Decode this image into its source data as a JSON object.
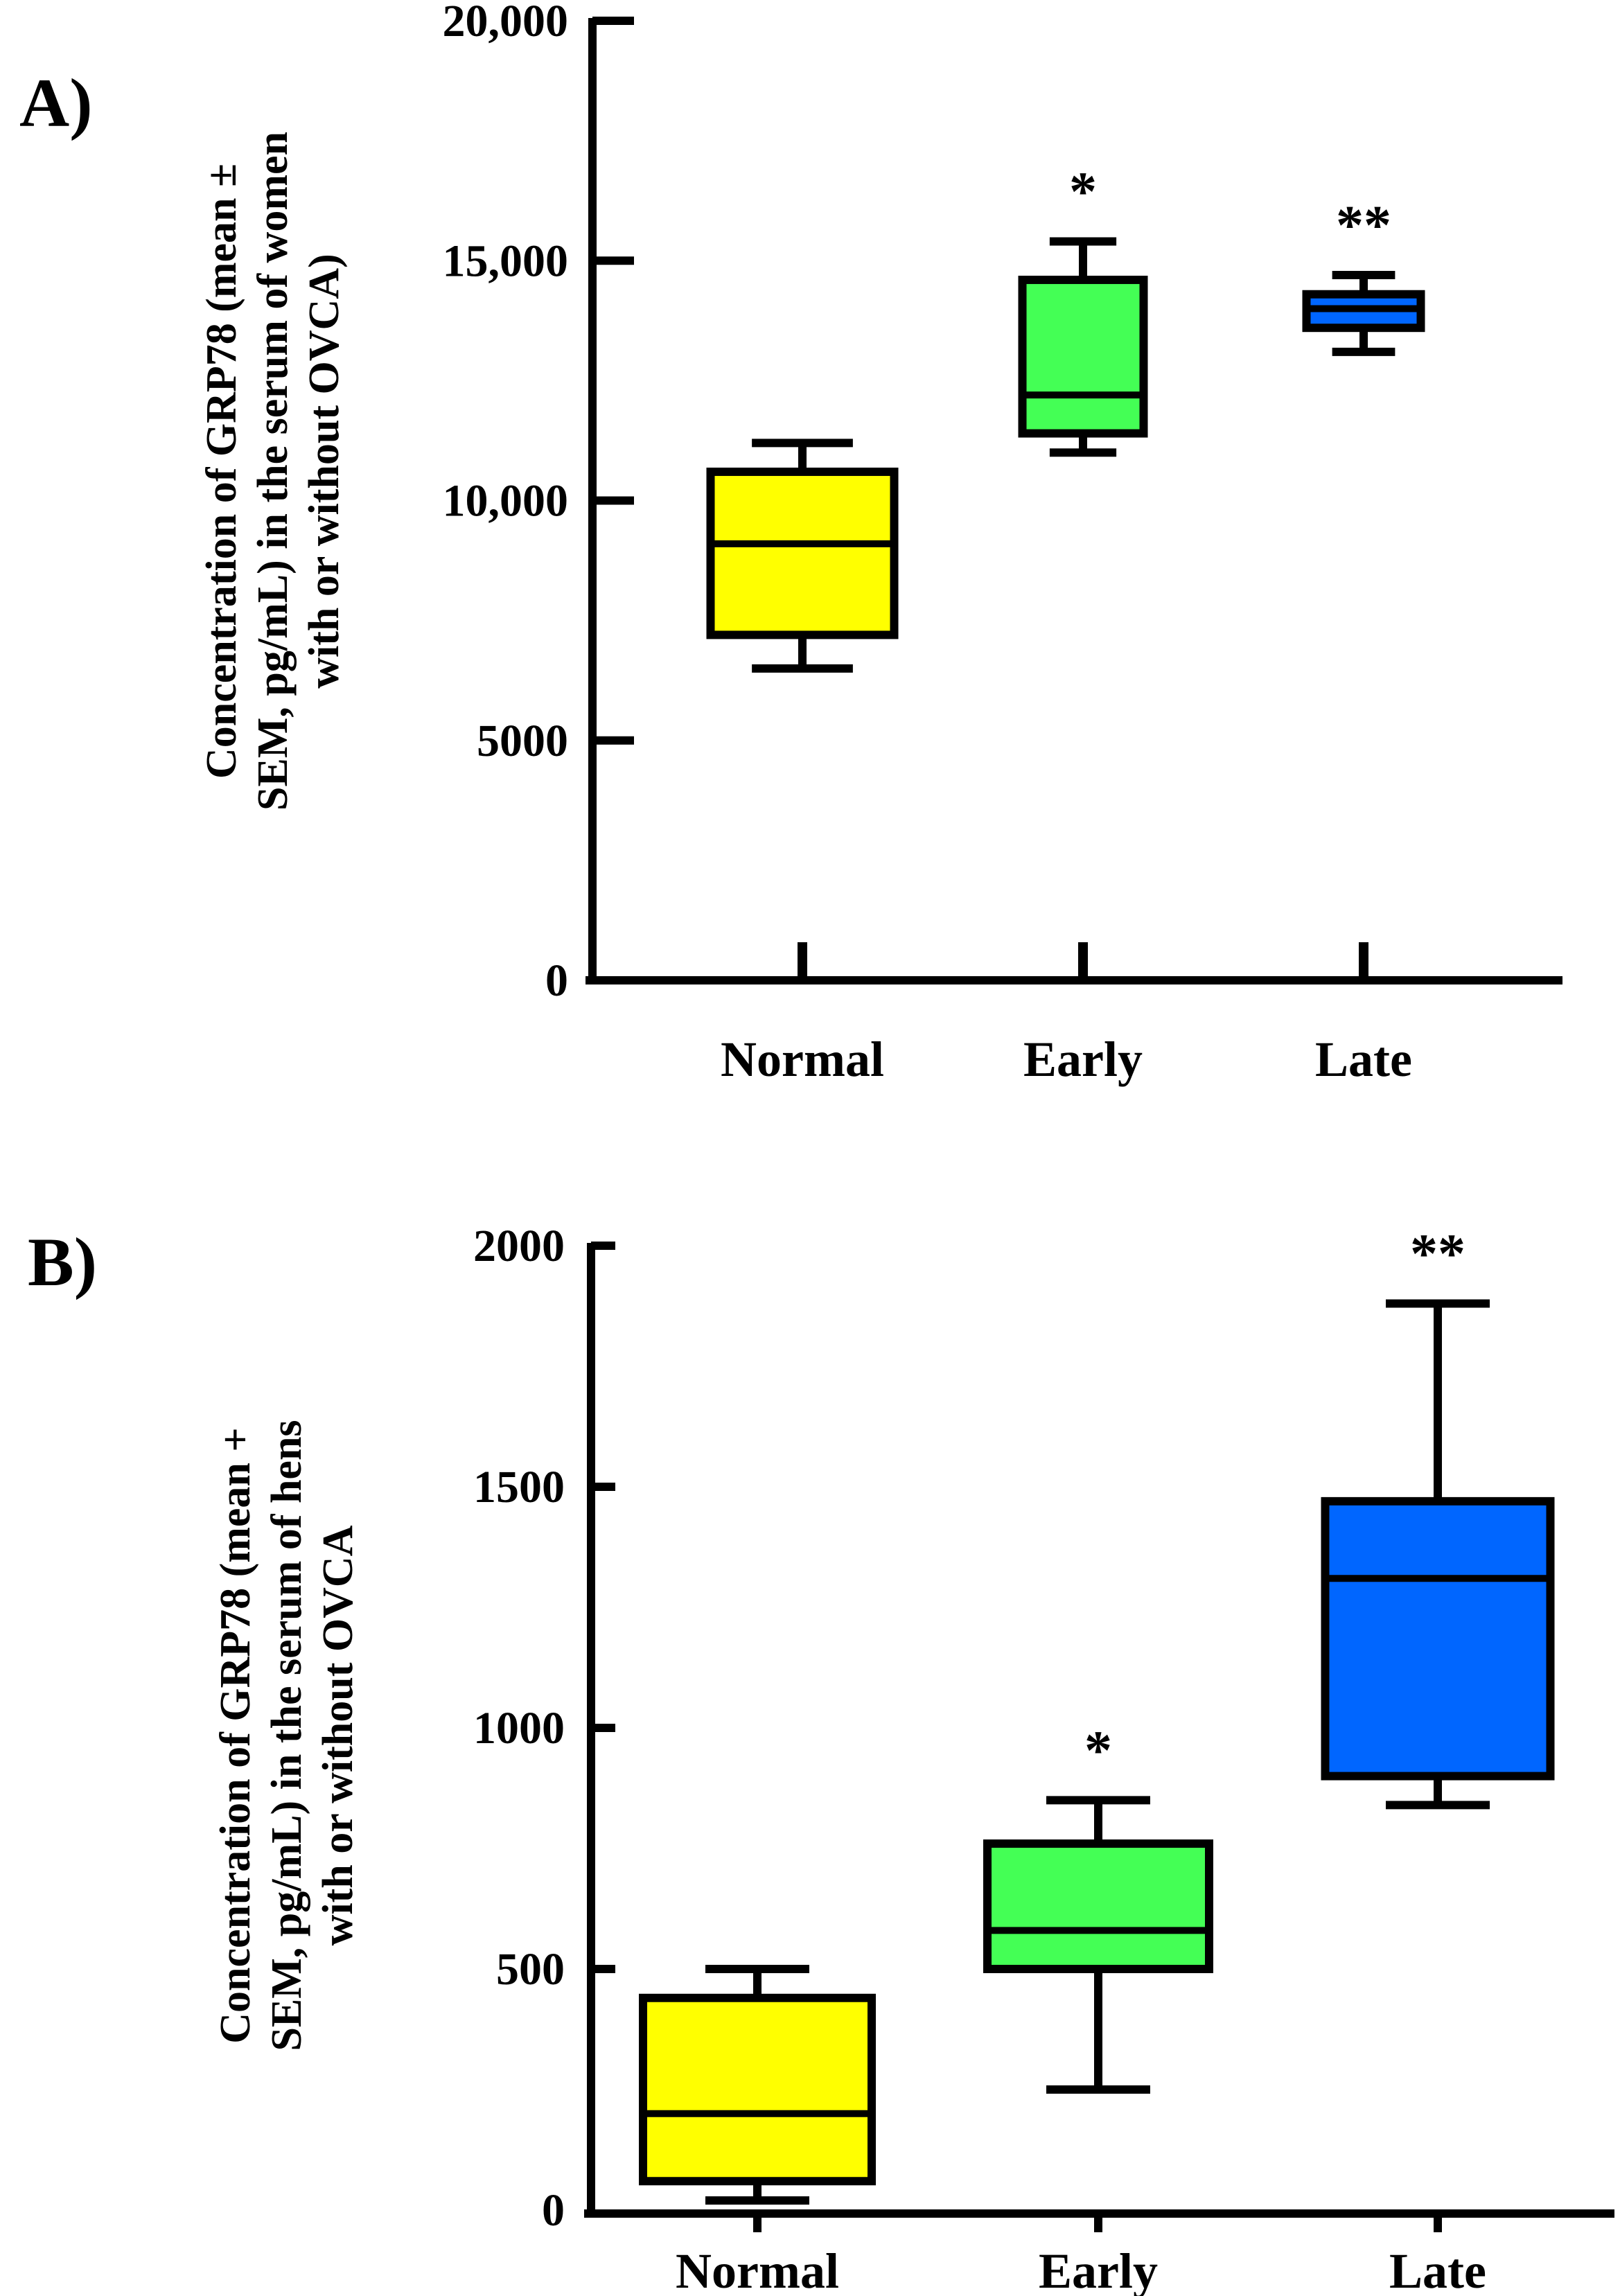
{
  "chart_data": [
    {
      "type": "box",
      "panel_label": "A)",
      "title": "",
      "ylabel_lines": [
        "Concentration of GRP78 (mean ±",
        "SEM, pg/mL) in the serum of women",
        "with or without OVCA)"
      ],
      "xlabel": "",
      "categories": [
        "Normal",
        "Early",
        "Late"
      ],
      "ylim": [
        0,
        20000
      ],
      "yticks": [
        0,
        5000,
        10000,
        15000,
        20000
      ],
      "ytick_labels": [
        "0",
        "5000",
        "10,000",
        "15,000",
        "20,000"
      ],
      "boxes": [
        {
          "category": "Normal",
          "whisker_low": 6500,
          "q1": 7200,
          "median": 9100,
          "q3": 10600,
          "whisker_high": 11200,
          "color": "#ffff00",
          "significance": ""
        },
        {
          "category": "Early",
          "whisker_low": 11000,
          "q1": 11400,
          "median": 12200,
          "q3": 14600,
          "whisker_high": 15400,
          "color": "#44ff55",
          "significance": "*"
        },
        {
          "category": "Late",
          "whisker_low": 13100,
          "q1": 13600,
          "median": 14000,
          "q3": 14300,
          "whisker_high": 14700,
          "color": "#0066ff",
          "significance": "**"
        }
      ]
    },
    {
      "type": "box",
      "panel_label": "B)",
      "title": "",
      "ylabel_lines": [
        "Concentration of GRP78 (mean +",
        "SEM, pg/mL) in the serum of hens",
        "with or without OVCA"
      ],
      "xlabel": "",
      "categories": [
        "Normal",
        "Early",
        "Late"
      ],
      "ylim": [
        0,
        2000
      ],
      "yticks": [
        0,
        500,
        1000,
        1500,
        2000
      ],
      "ytick_labels": [
        "0",
        "500",
        "1000",
        "1500",
        "2000"
      ],
      "boxes": [
        {
          "category": "Normal",
          "whisker_low": 20,
          "q1": 60,
          "median": 200,
          "q3": 440,
          "whisker_high": 500,
          "color": "#ffff00",
          "significance": ""
        },
        {
          "category": "Early",
          "whisker_low": 250,
          "q1": 500,
          "median": 580,
          "q3": 760,
          "whisker_high": 850,
          "color": "#44ff55",
          "significance": "*"
        },
        {
          "category": "Late",
          "whisker_low": 840,
          "q1": 900,
          "median": 1310,
          "q3": 1470,
          "whisker_high": 1880,
          "color": "#0066ff",
          "significance": "**"
        }
      ]
    }
  ]
}
